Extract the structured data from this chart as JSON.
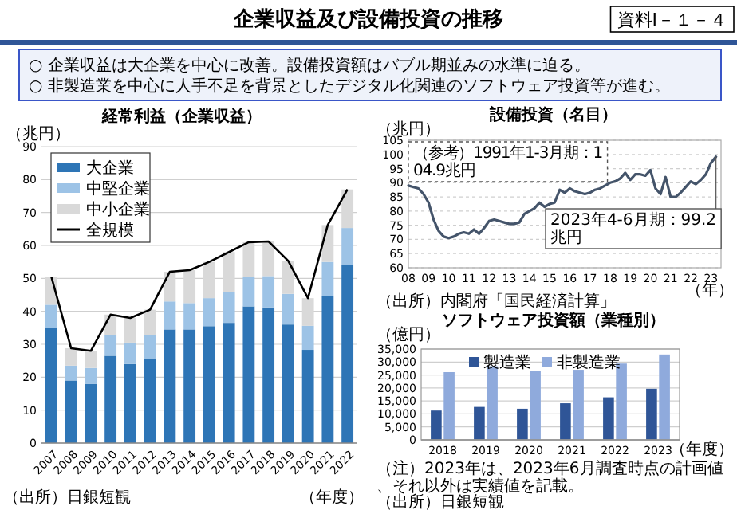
{
  "chart_data": [
    {
      "type": "other",
      "title": "企業収益及び設備投資の推移",
      "annotations": [
        "資料Ⅰ－１－４",
        "○ 企業収益は大企業を中心に改善。設備投資額はバブル期並みの水準に迫る。",
        "○ 非製造業を中心に人手不足を背景としたデジタル化関連のソフトウェア投資等が進む。"
      ]
    },
    {
      "type": "bar",
      "stacked": true,
      "title": "経常利益（企業収益）",
      "ylabel": "（兆円）",
      "xlabel": "（年度）",
      "categories": [
        "2007",
        "2008",
        "2009",
        "2010",
        "2011",
        "2012",
        "2013",
        "2014",
        "2015",
        "2016",
        "2017",
        "2018",
        "2019",
        "2020",
        "2021",
        "2022"
      ],
      "series": [
        {
          "name": "大企業",
          "color": "#2e75b6",
          "values": [
            35,
            19,
            18,
            26.5,
            24,
            25.5,
            34.5,
            34.5,
            35.5,
            36.5,
            41.5,
            41.2,
            36,
            28.3,
            44.7,
            54
          ]
        },
        {
          "name": "中堅企業",
          "color": "#9dc3e6",
          "values": [
            7,
            4.5,
            4.8,
            6.2,
            6.5,
            7.2,
            8.5,
            8,
            8.5,
            9.3,
            9,
            9.5,
            9.3,
            7.3,
            10.3,
            11.3
          ]
        },
        {
          "name": "中小企業",
          "color": "#d9d9d9",
          "values": [
            8.5,
            5.3,
            5.2,
            6.3,
            7.5,
            7.8,
            9,
            10,
            11,
            12.2,
            10.5,
            10.5,
            10,
            8.4,
            11.2,
            11.7
          ]
        },
        {
          "name": "全規模",
          "type": "line",
          "color": "#000000",
          "values": [
            50.5,
            28.8,
            28,
            39,
            38,
            40.5,
            52,
            52.5,
            55,
            58,
            61,
            61.2,
            55.3,
            44,
            66.2,
            77
          ]
        }
      ],
      "ylim": [
        0,
        90
      ],
      "yticks": [
        0,
        10,
        20,
        30,
        40,
        50,
        60,
        70,
        80,
        90
      ],
      "grid": "y",
      "legend": "top left",
      "annotations": [
        "（出所）日銀短観"
      ]
    },
    {
      "type": "line",
      "title": "設備投資（名目）",
      "ylabel": "（兆円）",
      "xlabel": "（年）",
      "x": [
        2008,
        2008.25,
        2008.5,
        2008.75,
        2009,
        2009.25,
        2009.5,
        2009.75,
        2010,
        2010.25,
        2010.5,
        2010.75,
        2011,
        2011.25,
        2011.5,
        2011.75,
        2012,
        2012.25,
        2012.5,
        2012.75,
        2013,
        2013.25,
        2013.5,
        2013.75,
        2014,
        2014.25,
        2014.5,
        2014.75,
        2015,
        2015.25,
        2015.5,
        2015.75,
        2016,
        2016.25,
        2016.5,
        2016.75,
        2017,
        2017.25,
        2017.5,
        2017.75,
        2018,
        2018.25,
        2018.5,
        2018.75,
        2019,
        2019.25,
        2019.5,
        2019.75,
        2020,
        2020.25,
        2020.5,
        2020.75,
        2021,
        2021.25,
        2021.5,
        2021.75,
        2022,
        2022.25,
        2022.5,
        2022.75,
        2023,
        2023.25
      ],
      "series": [
        {
          "color": "#44546a",
          "values": [
            89,
            88.5,
            88,
            86,
            83,
            77,
            73,
            71,
            70.5,
            71,
            72,
            72.5,
            72,
            73.5,
            72,
            74,
            76.5,
            77,
            76.5,
            76,
            75.5,
            75.5,
            76,
            79,
            80,
            81,
            83,
            81.5,
            82.5,
            83,
            87.5,
            86.5,
            88,
            87,
            86.5,
            86,
            86.5,
            87.5,
            88,
            89,
            90,
            90.5,
            91.5,
            93.5,
            91,
            93,
            93,
            92.5,
            94.5,
            88,
            86,
            92,
            85,
            85,
            86.5,
            88.5,
            90.5,
            89.5,
            91,
            93,
            97,
            99.2
          ]
        }
      ],
      "xlim": [
        2008,
        2023.5
      ],
      "xticks": [
        {
          "value": 2008,
          "label": "08"
        },
        {
          "value": 2009,
          "label": "09"
        },
        {
          "value": 2010,
          "label": "10"
        },
        {
          "value": 2011,
          "label": "11"
        },
        {
          "value": 2012,
          "label": "12"
        },
        {
          "value": 2013,
          "label": "13"
        },
        {
          "value": 2014,
          "label": "14"
        },
        {
          "value": 2015,
          "label": "15"
        },
        {
          "value": 2016,
          "label": "16"
        },
        {
          "value": 2017,
          "label": "17"
        },
        {
          "value": 2018,
          "label": "18"
        },
        {
          "value": 2019,
          "label": "19"
        },
        {
          "value": 2020,
          "label": "20"
        },
        {
          "value": 2021,
          "label": "21"
        },
        {
          "value": 2022,
          "label": "22"
        },
        {
          "value": 2023,
          "label": "23"
        }
      ],
      "ylim": [
        60,
        105
      ],
      "yticks": [
        60,
        65,
        70,
        75,
        80,
        85,
        90,
        95,
        100,
        105
      ],
      "grid": "y",
      "annotations": [
        "（参考）1991年1-3月期：104.9兆円",
        {
          "text": "2023年4-6月期：99.2兆円",
          "x": 2023.25,
          "y": 99.2
        },
        "（出所）内閣府「国民経済計算」"
      ]
    },
    {
      "type": "bar",
      "title": "ソフトウェア投資額（業種別）",
      "ylabel": "（億円）",
      "xlabel": "（年度）",
      "categories": [
        "2018",
        "2019",
        "2020",
        "2021",
        "2022",
        "2023"
      ],
      "series": [
        {
          "name": "製造業",
          "color": "#2f5597",
          "values": [
            11300,
            12700,
            12000,
            14100,
            16400,
            19700
          ]
        },
        {
          "name": "非製造業",
          "color": "#8faadc",
          "values": [
            26100,
            28400,
            26600,
            27000,
            29400,
            32900
          ]
        }
      ],
      "ylim": [
        0,
        35000
      ],
      "yticks": [
        0,
        {
          "value": 5000,
          "label": "5,000"
        },
        {
          "value": 10000,
          "label": "10,000"
        },
        {
          "value": 15000,
          "label": "15,000"
        },
        {
          "value": 20000,
          "label": "20,000"
        },
        {
          "value": 25000,
          "label": "25,000"
        },
        {
          "value": 30000,
          "label": "30,000"
        },
        {
          "value": 35000,
          "label": "35,000"
        }
      ],
      "grid": "y",
      "legend": "top",
      "annotations": [
        "（注）2023年は、2023年6月調査時点の計画値、それ以外は実績値を記載。",
        "（出所）日銀短観"
      ]
    }
  ]
}
